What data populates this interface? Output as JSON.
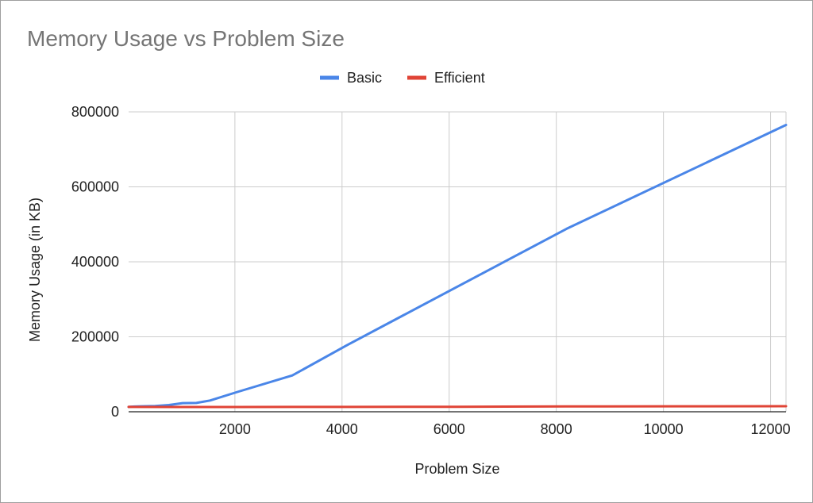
{
  "chart_data": {
    "type": "line",
    "title": "Memory Usage vs Problem Size",
    "xlabel": "Problem Size",
    "ylabel": "Memory Usage (in KB)",
    "xlim": [
      16,
      12288
    ],
    "ylim": [
      0,
      800000
    ],
    "x_ticks": [
      2000,
      4000,
      6000,
      8000,
      10000,
      12000
    ],
    "y_ticks": [
      0,
      200000,
      400000,
      600000,
      800000
    ],
    "grid": true,
    "legend_position": "top",
    "series": [
      {
        "name": "Basic",
        "color": "#4a86e8",
        "points": [
          [
            16,
            13000
          ],
          [
            64,
            13500
          ],
          [
            128,
            14000
          ],
          [
            256,
            14500
          ],
          [
            512,
            15500
          ],
          [
            768,
            18000
          ],
          [
            1024,
            23000
          ],
          [
            1280,
            23500
          ],
          [
            1536,
            30000
          ],
          [
            2048,
            53000
          ],
          [
            3072,
            97000
          ],
          [
            4096,
            178000
          ],
          [
            8192,
            488000
          ],
          [
            12288,
            765000
          ]
        ]
      },
      {
        "name": "Efficient",
        "color": "#e04436",
        "points": [
          [
            16,
            13000
          ],
          [
            1024,
            12800
          ],
          [
            2048,
            12800
          ],
          [
            3072,
            12900
          ],
          [
            4096,
            13000
          ],
          [
            6144,
            13300
          ],
          [
            8192,
            14200
          ],
          [
            10240,
            14500
          ],
          [
            12288,
            14800
          ]
        ]
      }
    ]
  }
}
